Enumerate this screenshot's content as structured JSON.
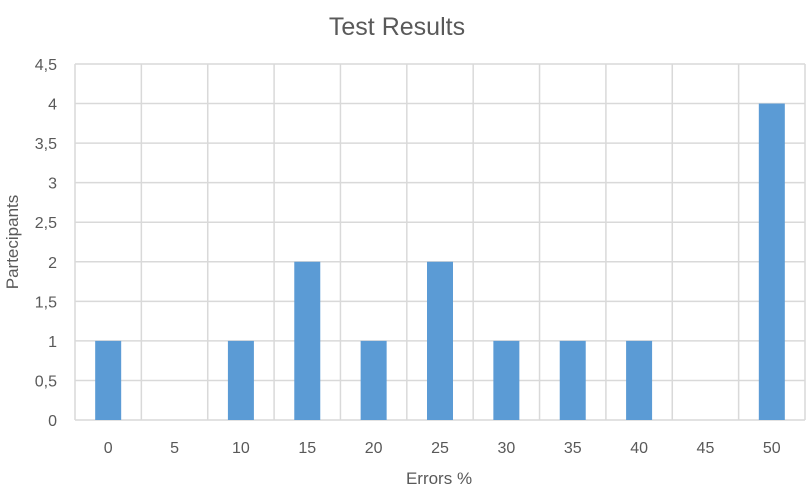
{
  "chart_data": {
    "type": "bar",
    "title": "Test Results",
    "xlabel": "Errors %",
    "ylabel": "Partecipants",
    "categories": [
      "0",
      "5",
      "10",
      "15",
      "20",
      "25",
      "30",
      "35",
      "40",
      "45",
      "50"
    ],
    "values": [
      1,
      0,
      1,
      2,
      1,
      2,
      1,
      1,
      1,
      0,
      4
    ],
    "ylim": [
      0,
      4.5
    ],
    "yticks": [
      "0",
      "0,5",
      "1",
      "1,5",
      "2",
      "2,5",
      "3",
      "3,5",
      "4",
      "4,5"
    ],
    "grid": true,
    "bar_color": "#5B9BD5"
  }
}
